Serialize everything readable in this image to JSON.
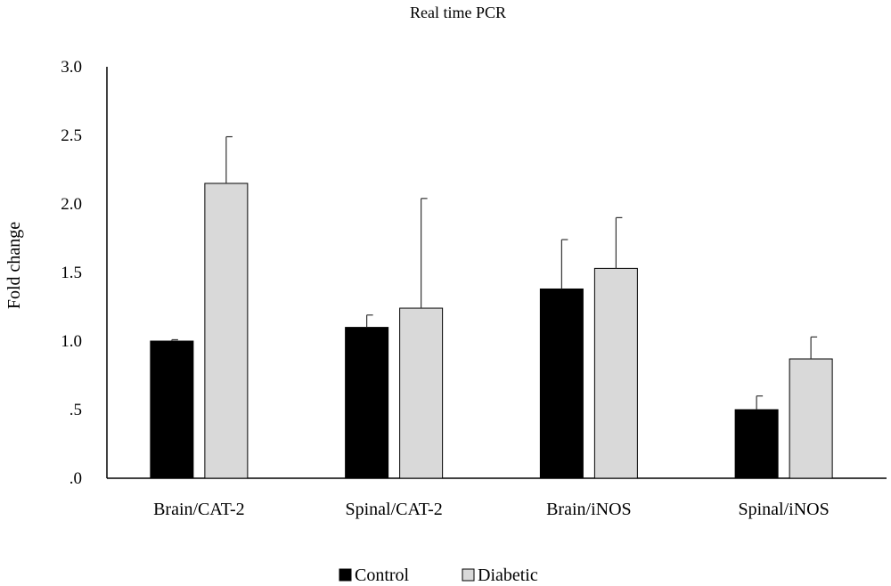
{
  "chart_data": {
    "type": "bar",
    "title": "Real time PCR",
    "xlabel": "",
    "ylabel": "Fold change",
    "ylim": [
      0,
      3.0
    ],
    "yticks": [
      0,
      0.5,
      1.0,
      1.5,
      2.0,
      2.5,
      3.0
    ],
    "ytick_labels": [
      ".0",
      ".5",
      "1.0",
      "1.5",
      "2.0",
      "2.5",
      "3.0"
    ],
    "categories": [
      "Brain/CAT-2",
      "Spinal/CAT-2",
      "Brain/iNOS",
      "Spinal/iNOS"
    ],
    "series": [
      {
        "name": "Control",
        "color": "#000000",
        "values": [
          1.0,
          1.1,
          1.38,
          0.5
        ],
        "errors": [
          0.01,
          0.09,
          0.36,
          0.1
        ]
      },
      {
        "name": "Diabetic",
        "color": "#d9d9d9",
        "values": [
          2.15,
          1.24,
          1.53,
          0.87
        ],
        "errors": [
          0.34,
          0.8,
          0.37,
          0.16
        ]
      }
    ],
    "legend": "bottom",
    "grid": false
  }
}
